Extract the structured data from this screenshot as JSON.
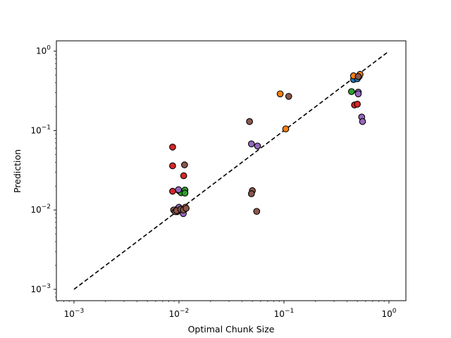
{
  "chart_data": {
    "type": "scatter",
    "xlabel": "Optimal Chunk Size",
    "ylabel": "Prediction",
    "xscale": "log",
    "yscale": "log",
    "xlim": [
      0.00068,
      1.45
    ],
    "ylim": [
      0.00072,
      1.35
    ],
    "x_ticks": [
      {
        "value": 0.001,
        "base": "10",
        "exp": "−3"
      },
      {
        "value": 0.01,
        "base": "10",
        "exp": "−2"
      },
      {
        "value": 0.1,
        "base": "10",
        "exp": "−1"
      },
      {
        "value": 1,
        "base": "10",
        "exp": "0"
      }
    ],
    "y_ticks": [
      {
        "value": 0.001,
        "base": "10",
        "exp": "−3"
      },
      {
        "value": 0.01,
        "base": "10",
        "exp": "−2"
      },
      {
        "value": 0.1,
        "base": "10",
        "exp": "−1"
      },
      {
        "value": 1,
        "base": "10",
        "exp": "0"
      }
    ],
    "grid": false,
    "legend": false,
    "reference_line": {
      "x": [
        0.001,
        1
      ],
      "y": [
        0.001,
        1
      ],
      "style": "dashed",
      "color": "#000000"
    },
    "series": [
      {
        "color": "#1f77b4",
        "points": [
          [
            0.0102,
            0.0099
          ],
          [
            0.0113,
            0.0102
          ],
          [
            0.46,
            0.44
          ],
          [
            0.5,
            0.45
          ],
          [
            0.52,
            0.48
          ]
        ]
      },
      {
        "color": "#ff7f0e",
        "points": [
          [
            0.092,
            0.29
          ],
          [
            0.104,
            0.105
          ],
          [
            0.0098,
            0.0105
          ],
          [
            0.0115,
            0.0108
          ],
          [
            0.46,
            0.49
          ],
          [
            0.53,
            0.51
          ]
        ]
      },
      {
        "color": "#2ca02c",
        "points": [
          [
            0.01,
            0.0175
          ],
          [
            0.0105,
            0.0165
          ],
          [
            0.0114,
            0.0178
          ],
          [
            0.0114,
            0.0163
          ],
          [
            0.44,
            0.31
          ]
        ]
      },
      {
        "color": "#d62728",
        "points": [
          [
            0.0087,
            0.062
          ],
          [
            0.0087,
            0.036
          ],
          [
            0.0111,
            0.027
          ],
          [
            0.0087,
            0.0172
          ],
          [
            0.47,
            0.21
          ],
          [
            0.5,
            0.215
          ],
          [
            0.0096,
            0.0095
          ]
        ]
      },
      {
        "color": "#9467bd",
        "points": [
          [
            0.0099,
            0.018
          ],
          [
            0.01,
            0.0108
          ],
          [
            0.011,
            0.009
          ],
          [
            0.049,
            0.068
          ],
          [
            0.056,
            0.064
          ],
          [
            0.51,
            0.305
          ],
          [
            0.51,
            0.29
          ],
          [
            0.55,
            0.148
          ],
          [
            0.56,
            0.13
          ]
        ]
      },
      {
        "color": "#8c564b",
        "points": [
          [
            0.0113,
            0.037
          ],
          [
            0.047,
            0.13
          ],
          [
            0.111,
            0.27
          ],
          [
            0.05,
            0.0175
          ],
          [
            0.049,
            0.016
          ],
          [
            0.055,
            0.0096
          ],
          [
            0.0089,
            0.01
          ],
          [
            0.0092,
            0.0095
          ],
          [
            0.0095,
            0.0098
          ],
          [
            0.0104,
            0.0102
          ],
          [
            0.011,
            0.01
          ],
          [
            0.0117,
            0.0105
          ],
          [
            0.51,
            0.48
          ]
        ]
      }
    ]
  }
}
